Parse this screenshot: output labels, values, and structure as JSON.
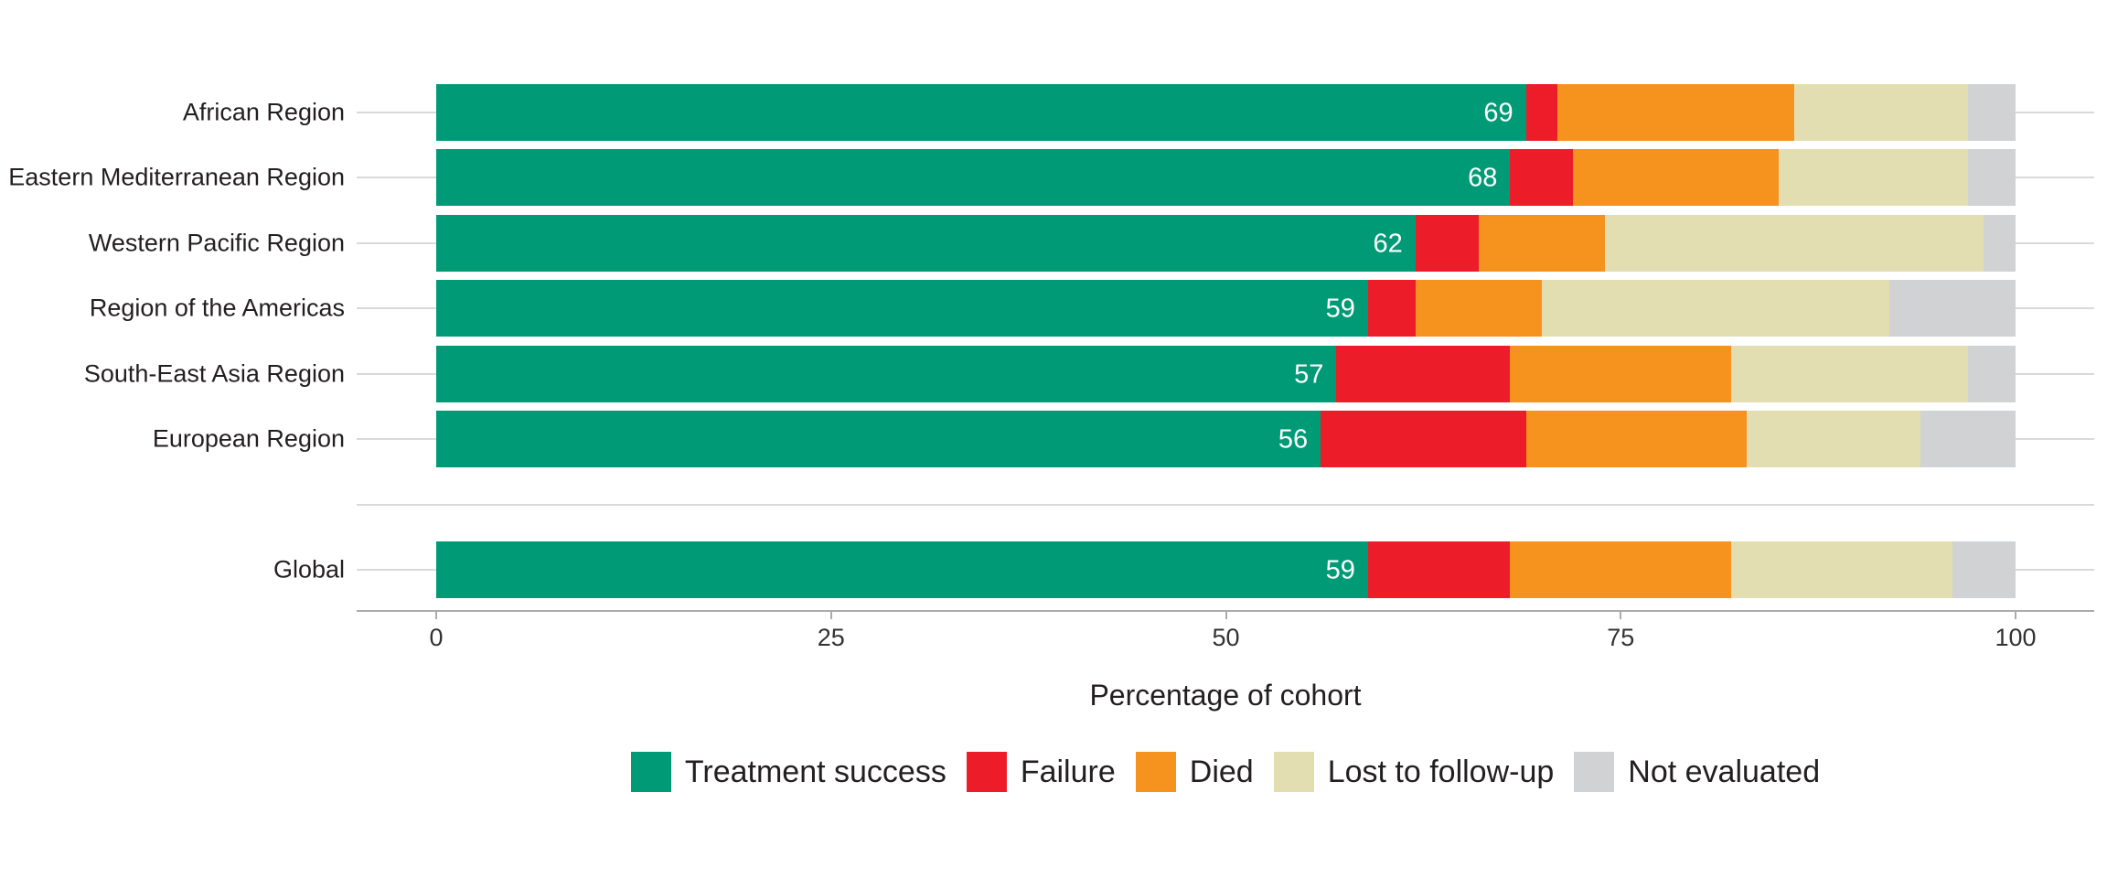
{
  "chart_data": {
    "type": "bar",
    "orientation": "horizontal",
    "stacked": true,
    "title": "",
    "xlabel": "Percentage of cohort",
    "ylabel": "",
    "xlim": [
      0,
      100
    ],
    "x_ticks": [
      "0",
      "25",
      "50",
      "75",
      "100"
    ],
    "grid": "horizontal-category-lines",
    "legend_position": "bottom",
    "categories": [
      "African Region",
      "Eastern Mediterranean Region",
      "Western Pacific Region",
      "Region of the Americas",
      "South-East Asia Region",
      "European Region",
      "Global"
    ],
    "global_row_separated": true,
    "series": [
      {
        "name": "Treatment success",
        "color": "#009b76",
        "values": [
          69,
          68,
          62,
          59,
          57,
          56,
          59
        ]
      },
      {
        "name": "Failure",
        "color": "#ec1d28",
        "values": [
          2,
          4,
          4,
          3,
          11,
          13,
          9
        ]
      },
      {
        "name": "Died",
        "color": "#f6931f",
        "values": [
          15,
          13,
          8,
          8,
          14,
          14,
          14
        ]
      },
      {
        "name": "Lost to follow-up",
        "color": "#e3deb1",
        "values": [
          11,
          12,
          24,
          22,
          15,
          11,
          14
        ]
      },
      {
        "name": "Not evaluated",
        "color": "#d0d2d3",
        "values": [
          3,
          3,
          2,
          8,
          3,
          6,
          4
        ]
      }
    ],
    "bar_value_labels": [
      "69",
      "68",
      "62",
      "59",
      "57",
      "56",
      "59"
    ],
    "bar_value_label_series": "Treatment success",
    "accent_colors": {
      "gridline": "#d9d9d9",
      "axis": "#ababab",
      "text": "#231f20",
      "bar_label_text": "#ffffff"
    }
  }
}
